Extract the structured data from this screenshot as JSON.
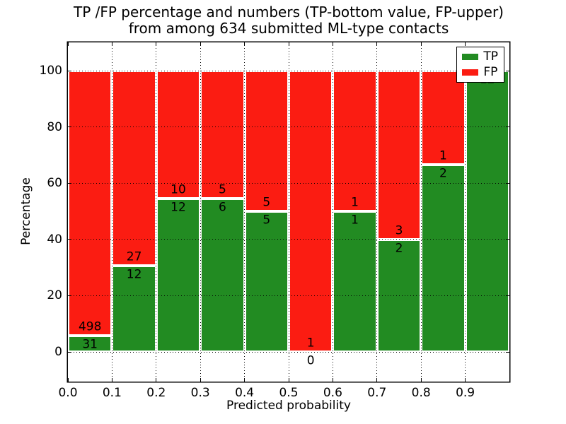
{
  "chart_data": {
    "type": "bar",
    "stacked": true,
    "title_line1": "TP /FP percentage and numbers (TP-bottom value, FP-upper)",
    "title_line2": "from among 634 submitted ML-type contacts",
    "xlabel": "Predicted probability",
    "ylabel": "Percentage",
    "xlim": [
      0,
      1
    ],
    "ylim": [
      -10.5,
      110
    ],
    "grid": "dotted",
    "bar_edge_color": "#ffffff",
    "xticks": {
      "values": [
        0,
        0.1,
        0.2,
        0.3,
        0.4,
        0.5,
        0.6,
        0.7,
        0.8,
        0.9
      ],
      "labels": [
        "0.0",
        "0.1",
        "0.2",
        "0.3",
        "0.4",
        "0.5",
        "0.6",
        "0.7",
        "0.8",
        "0.9"
      ]
    },
    "yticks": {
      "values": [
        0,
        20,
        40,
        60,
        80,
        100
      ],
      "labels": [
        "0",
        "20",
        "40",
        "60",
        "80",
        "100"
      ]
    },
    "legend": {
      "position": "upper right",
      "items": [
        {
          "label": "TP",
          "color": "#228b22"
        },
        {
          "label": "FP",
          "color": "#fb1c12"
        }
      ]
    },
    "bins": [
      {
        "range": [
          0.0,
          0.1
        ],
        "tp": 31,
        "fp": 498
      },
      {
        "range": [
          0.1,
          0.2
        ],
        "tp": 12,
        "fp": 27
      },
      {
        "range": [
          0.2,
          0.3
        ],
        "tp": 12,
        "fp": 10
      },
      {
        "range": [
          0.3,
          0.4
        ],
        "tp": 6,
        "fp": 5
      },
      {
        "range": [
          0.4,
          0.5
        ],
        "tp": 5,
        "fp": 5
      },
      {
        "range": [
          0.5,
          0.6
        ],
        "tp": 0,
        "fp": 1
      },
      {
        "range": [
          0.6,
          0.7
        ],
        "tp": 1,
        "fp": 1
      },
      {
        "range": [
          0.7,
          0.8
        ],
        "tp": 2,
        "fp": 3
      },
      {
        "range": [
          0.8,
          0.9
        ],
        "tp": 2,
        "fp": 1
      },
      {
        "range": [
          0.9,
          1.0
        ],
        "tp": 12,
        "fp": 0
      }
    ],
    "total_contacts": 634
  }
}
